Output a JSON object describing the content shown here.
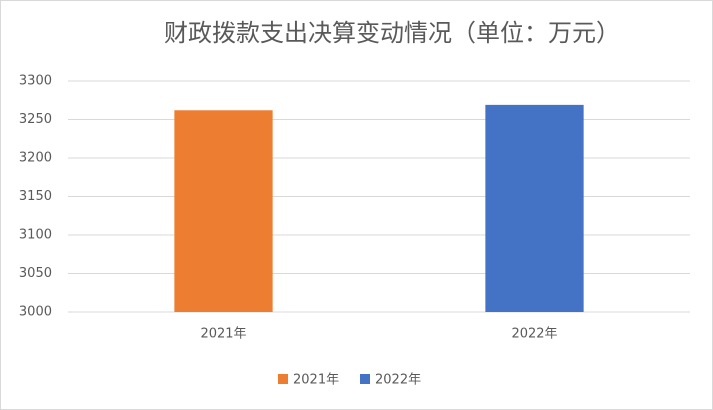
{
  "chart_data": {
    "type": "bar",
    "title": "财政拨款支出决算变动情况（单位：万元）",
    "categories": [
      "2021年",
      "2022年"
    ],
    "values": [
      3262,
      3269
    ],
    "colors": [
      "#ed7d31",
      "#4472c4"
    ],
    "ylim": [
      3000,
      3300
    ],
    "yticks": [
      3000,
      3050,
      3100,
      3150,
      3200,
      3250,
      3300
    ],
    "grid": true,
    "legend": "bottom"
  }
}
